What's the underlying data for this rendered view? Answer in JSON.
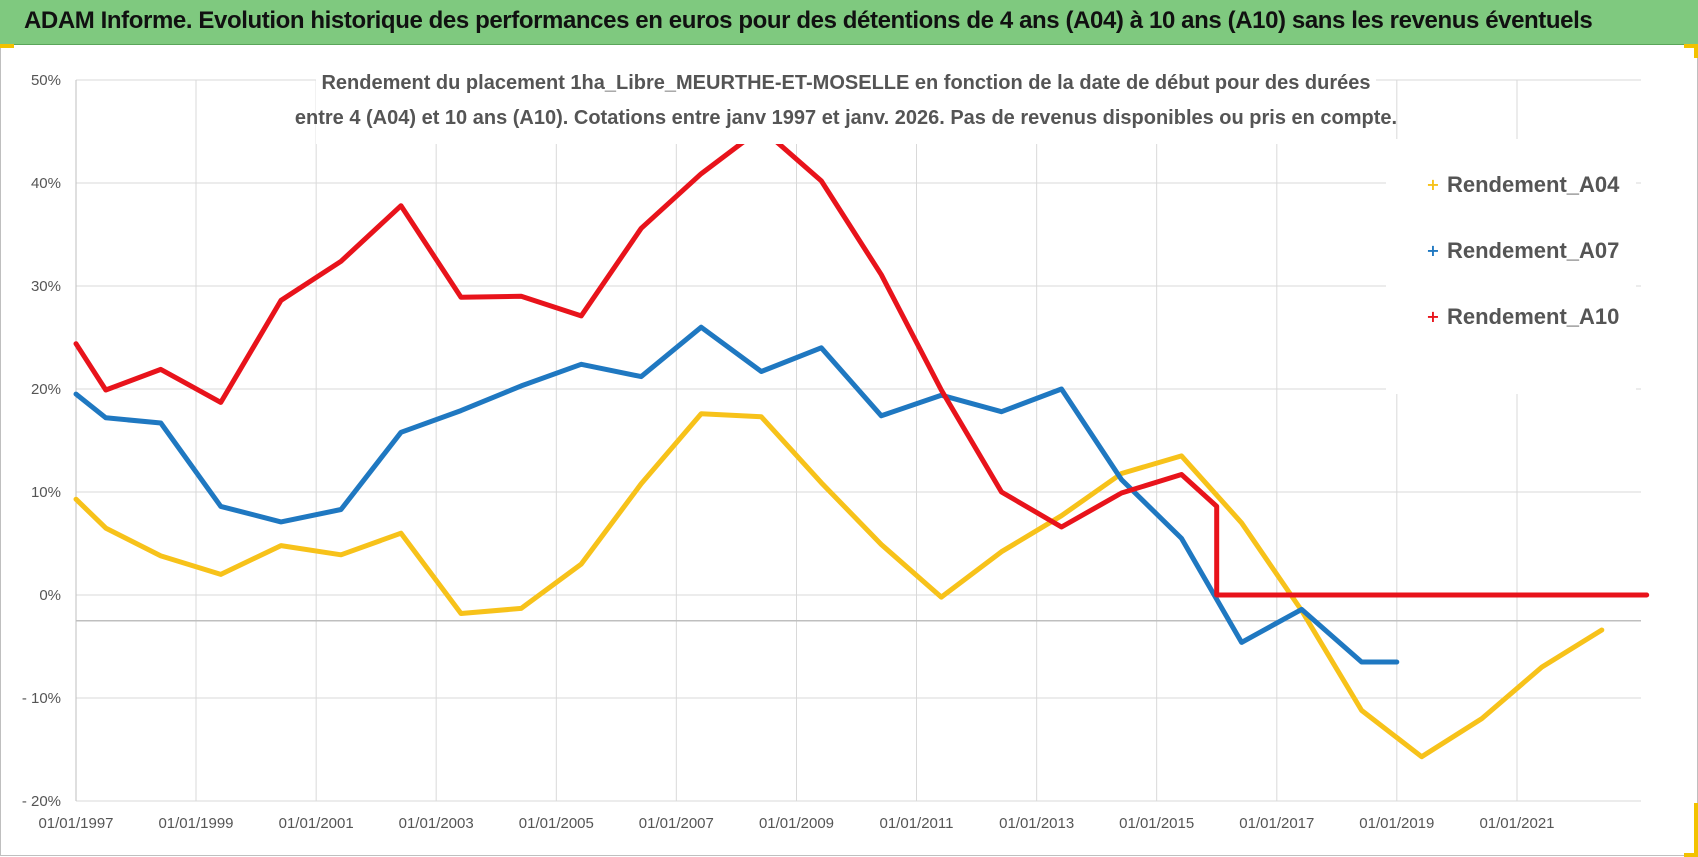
{
  "banner": {
    "title": "ADAM Informe. Evolution historique des performances en euros pour des détentions de 4 ans (A04) à 10 ans (A10) sans les revenus éventuels"
  },
  "colors": {
    "banner_bg": "#7fc97f",
    "A04": "#f7c21a",
    "A07": "#1f78c1",
    "A10": "#e8131b"
  },
  "chart_data": {
    "type": "line",
    "title_lines": [
      "Rendement du placement 1ha_Libre_MEURTHE-ET-MOSELLE en fonction de la date de début pour des durées",
      "entre 4 (A04) et 10 ans (A10). Cotations entre janv 1997 et janv. 2026. Pas de revenus disponibles ou pris en compte."
    ],
    "xlabel": "",
    "ylabel": "",
    "x_axis": {
      "type": "date",
      "range": [
        "1997-01-01",
        "2023-03-01"
      ],
      "tick_labels": [
        "01/01/1997",
        "01/01/1999",
        "01/01/2001",
        "01/01/2003",
        "01/01/2005",
        "01/01/2007",
        "01/01/2009",
        "01/01/2011",
        "01/01/2013",
        "01/01/2015",
        "01/01/2017",
        "01/01/2019",
        "01/01/2021"
      ]
    },
    "y_axis": {
      "range": [
        -20,
        50
      ],
      "ticks": [
        -20,
        -10,
        0,
        10,
        20,
        30,
        40,
        50
      ],
      "tick_labels": [
        "- 20%",
        "- 10%",
        "0%",
        "10%",
        "20%",
        "30%",
        "40%",
        "50%"
      ]
    },
    "grid": true,
    "legend_position": "top-right",
    "series": [
      {
        "name": "Rendement_A04",
        "color": "#f7c21a",
        "points": [
          [
            "1997-01-01",
            9.3
          ],
          [
            "1997-07-01",
            6.5
          ],
          [
            "1998-06-01",
            3.8
          ],
          [
            "1999-06-01",
            2.0
          ],
          [
            "2000-06-01",
            4.8
          ],
          [
            "2001-06-01",
            3.9
          ],
          [
            "2002-06-01",
            6.0
          ],
          [
            "2003-06-01",
            -1.8
          ],
          [
            "2004-06-01",
            -1.3
          ],
          [
            "2005-06-01",
            3.0
          ],
          [
            "2006-06-01",
            10.8
          ],
          [
            "2007-06-01",
            17.6
          ],
          [
            "2008-06-01",
            17.3
          ],
          [
            "2009-06-01",
            10.9
          ],
          [
            "2010-06-01",
            4.9
          ],
          [
            "2011-06-01",
            -0.2
          ],
          [
            "2012-06-01",
            4.2
          ],
          [
            "2013-06-01",
            7.7
          ],
          [
            "2014-06-01",
            11.8
          ],
          [
            "2015-06-01",
            13.5
          ],
          [
            "2016-06-01",
            7.0
          ],
          [
            "2017-06-01",
            -1.5
          ],
          [
            "2018-06-01",
            -11.2
          ],
          [
            "2019-06-01",
            -15.7
          ],
          [
            "2020-06-01",
            -12.0
          ],
          [
            "2021-06-01",
            -7.0
          ],
          [
            "2022-06-01",
            -3.4
          ]
        ]
      },
      {
        "name": "Rendement_A07",
        "color": "#1f78c1",
        "points": [
          [
            "1997-01-01",
            19.5
          ],
          [
            "1997-07-01",
            17.2
          ],
          [
            "1998-06-01",
            16.7
          ],
          [
            "1999-06-01",
            8.6
          ],
          [
            "2000-06-01",
            7.1
          ],
          [
            "2001-06-01",
            8.3
          ],
          [
            "2002-06-01",
            15.8
          ],
          [
            "2003-06-01",
            17.9
          ],
          [
            "2004-06-01",
            20.3
          ],
          [
            "2005-06-01",
            22.4
          ],
          [
            "2006-06-01",
            21.2
          ],
          [
            "2007-06-01",
            26.0
          ],
          [
            "2008-06-01",
            21.7
          ],
          [
            "2009-06-01",
            24.0
          ],
          [
            "2010-06-01",
            17.4
          ],
          [
            "2011-06-01",
            19.4
          ],
          [
            "2012-06-01",
            17.8
          ],
          [
            "2013-06-01",
            20.0
          ],
          [
            "2014-06-01",
            11.2
          ],
          [
            "2015-06-01",
            5.5
          ],
          [
            "2016-06-01",
            -4.6
          ],
          [
            "2017-06-01",
            -1.4
          ],
          [
            "2018-06-01",
            -6.5
          ],
          [
            "2019-01-01",
            -6.5
          ]
        ]
      },
      {
        "name": "Rendement_A10",
        "color": "#e8131b",
        "points": [
          [
            "1997-01-01",
            24.4
          ],
          [
            "1997-07-01",
            19.9
          ],
          [
            "1998-06-01",
            21.9
          ],
          [
            "1999-06-01",
            18.7
          ],
          [
            "2000-06-01",
            28.6
          ],
          [
            "2001-06-01",
            32.4
          ],
          [
            "2002-06-01",
            37.8
          ],
          [
            "2003-06-01",
            28.9
          ],
          [
            "2004-06-01",
            29.0
          ],
          [
            "2005-06-01",
            27.1
          ],
          [
            "2006-06-01",
            35.6
          ],
          [
            "2007-06-01",
            40.9
          ],
          [
            "2008-06-01",
            45.3
          ],
          [
            "2009-06-01",
            40.2
          ],
          [
            "2010-06-01",
            31.1
          ],
          [
            "2011-06-01",
            19.9
          ],
          [
            "2012-06-01",
            10.0
          ],
          [
            "2013-06-01",
            6.6
          ],
          [
            "2014-06-01",
            9.9
          ],
          [
            "2015-06-01",
            11.7
          ],
          [
            "2016-01-01",
            8.6
          ],
          [
            "2016-01-01",
            0.0
          ],
          [
            "2023-03-01",
            0.0
          ]
        ]
      }
    ]
  }
}
